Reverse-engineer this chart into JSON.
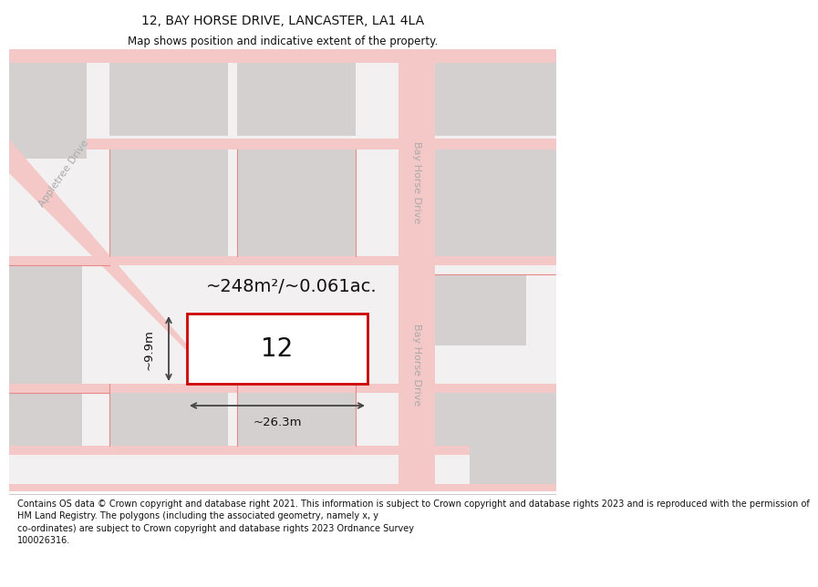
{
  "title": "12, BAY HORSE DRIVE, LANCASTER, LA1 4LA",
  "subtitle": "Map shows position and indicative extent of the property.",
  "footer": "Contains OS data © Crown copyright and database right 2021. This information is subject to Crown copyright and database rights 2023 and is reproduced with the permission of\nHM Land Registry. The polygons (including the associated geometry, namely x, y\nco-ordinates) are subject to Crown copyright and database rights 2023 Ordnance Survey\n100026316.",
  "map_bg": "#f2f0f0",
  "road_color": "#f5c8c8",
  "block_color": "#d4d0d0",
  "plot_fill": "#ffffff",
  "plot_border": "#cc0000",
  "area_text": "~248m²/~0.061ac.",
  "plot_number": "12",
  "dim_width": "~26.3m",
  "dim_height": "~9.9m",
  "street_label": "Bay Horse Drive",
  "street_label2": "Bay Horse Drive",
  "street_label_left": "Appletree Drive",
  "dim_line_color": "#444444",
  "text_color": "#111111",
  "street_text_color": "#aaaaaa",
  "title_fontsize": 10,
  "subtitle_fontsize": 8.5,
  "footer_fontsize": 7,
  "area_fontsize": 14,
  "number_fontsize": 20,
  "dim_fontsize": 9.5,
  "street_fontsize": 8
}
